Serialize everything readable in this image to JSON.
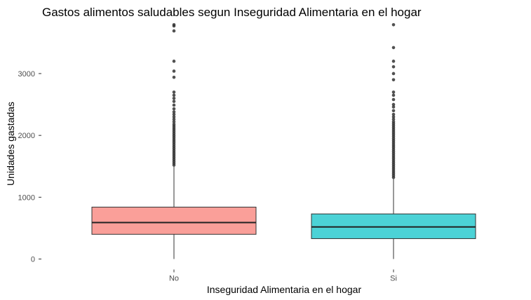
{
  "chart_data": {
    "type": "boxplot",
    "title": "Gastos alimentos saludables segun Inseguridad Alimentaria en el hogar",
    "xlabel": "Inseguridad Alimentaria en el hogar",
    "ylabel": "Unidades gastadas",
    "ylim": [
      -5,
      3850
    ],
    "yticks": [
      0,
      1000,
      2000,
      3000
    ],
    "ytick_labels": [
      "0",
      "1000",
      "2000",
      "3000"
    ],
    "grid": false,
    "legend": "none",
    "categories": [
      "No",
      "Si"
    ],
    "colors": [
      "#F8766D",
      "#00BFC4"
    ],
    "boxes": [
      {
        "category": "No",
        "whisker_low": 0,
        "q1": 400,
        "median": 590,
        "q3": 840,
        "whisker_high": 1500,
        "outliers": [
          1520,
          1550,
          1580,
          1610,
          1640,
          1670,
          1700,
          1730,
          1760,
          1790,
          1820,
          1850,
          1880,
          1910,
          1940,
          1970,
          2000,
          2030,
          2060,
          2090,
          2120,
          2150,
          2180,
          2220,
          2260,
          2300,
          2340,
          2380,
          2430,
          2490,
          2550,
          2600,
          2650,
          2700,
          2940,
          3040,
          3200,
          3690,
          3770,
          3790
        ]
      },
      {
        "category": "Si",
        "whisker_low": 0,
        "q1": 330,
        "median": 520,
        "q3": 730,
        "whisker_high": 1300,
        "outliers": [
          1320,
          1350,
          1380,
          1410,
          1440,
          1470,
          1500,
          1530,
          1560,
          1590,
          1620,
          1650,
          1680,
          1710,
          1740,
          1770,
          1800,
          1830,
          1860,
          1890,
          1920,
          1950,
          1980,
          2010,
          2040,
          2070,
          2100,
          2130,
          2160,
          2190,
          2220,
          2260,
          2300,
          2340,
          2400,
          2460,
          2500,
          2580,
          2650,
          2700,
          2900,
          3000,
          3110,
          3200,
          3420,
          3790
        ]
      }
    ]
  }
}
